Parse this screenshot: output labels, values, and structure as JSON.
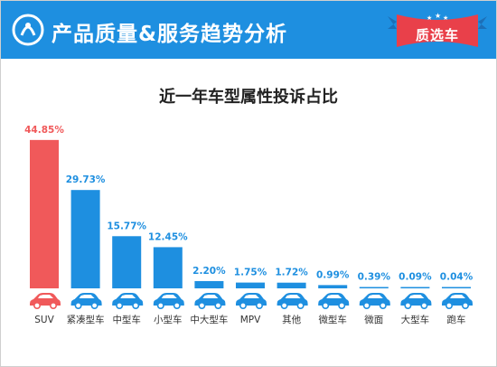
{
  "header": {
    "title": "产品质量&服务趋势分析",
    "badge_label": "质选车",
    "logo_icon": "brand-logo-icon",
    "badge_icon": "ribbon-badge-icon"
  },
  "colors": {
    "header_bg": "#1e8fe0",
    "badge_bg": "#e9404a",
    "highlight_bar": "#f0595a",
    "bar": "#1e8fe0",
    "highlight_label": "#f0595a",
    "label": "#1e8fe0"
  },
  "chart_data": {
    "type": "bar",
    "title": "近一年车型属性投诉占比",
    "xlabel": "",
    "ylabel": "",
    "ylim": [
      0,
      50
    ],
    "grid": false,
    "legend": "none",
    "categories": [
      "SUV",
      "紧凑型车",
      "中型车",
      "小型车",
      "中大型车",
      "MPV",
      "其他",
      "微型车",
      "微面",
      "大型车",
      "跑车"
    ],
    "values": [
      44.85,
      29.73,
      15.77,
      12.45,
      2.2,
      1.75,
      1.72,
      0.99,
      0.39,
      0.09,
      0.04
    ],
    "value_labels": [
      "44.85%",
      "29.73%",
      "15.77%",
      "12.45%",
      "2.20%",
      "1.75%",
      "1.72%",
      "0.99%",
      "0.39%",
      "0.09%",
      "0.04%"
    ],
    "icons": [
      "suv-car-icon",
      "compact-car-icon",
      "midsize-car-icon",
      "small-car-icon",
      "large-car-icon",
      "mpv-icon",
      "other-car-icon",
      "mini-car-icon",
      "microvan-icon",
      "full-size-car-icon",
      "sports-car-icon"
    ],
    "highlight_index": 0
  }
}
